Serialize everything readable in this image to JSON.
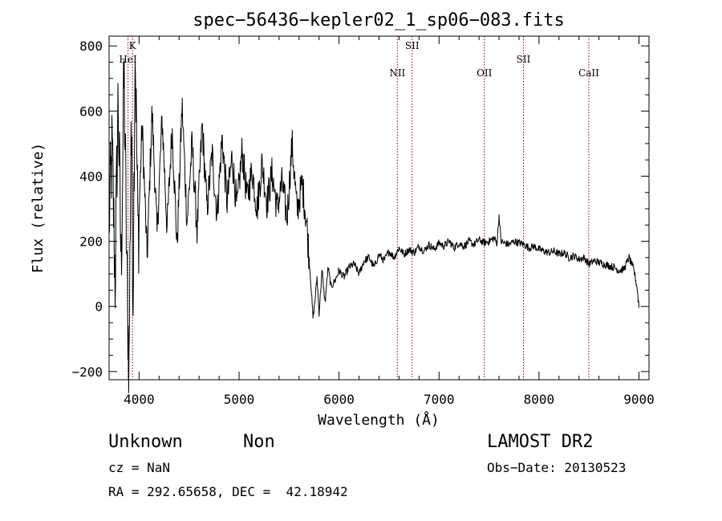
{
  "chart_data": {
    "type": "line",
    "title": "spec−56436−kepler02_1_sp06−083.fits",
    "xlabel": "Wavelength (Å)",
    "ylabel": "Flux (relative)",
    "xlim": [
      3700,
      9100
    ],
    "ylim": [
      -225,
      830
    ],
    "xticks": [
      4000,
      5000,
      6000,
      7000,
      8000,
      9000
    ],
    "xtick_labels": [
      "4000",
      "5000",
      "6000",
      "7000",
      "8000",
      "9000"
    ],
    "yticks": [
      -200,
      0,
      200,
      400,
      600,
      800
    ],
    "ytick_labels": [
      "−200",
      "0",
      "200",
      "400",
      "600",
      "800"
    ],
    "series": [
      {
        "name": "flux",
        "x": [
          3700,
          3730,
          3760,
          3790,
          3820,
          3850,
          3880,
          3900,
          3920,
          3940,
          3960,
          3990,
          4030,
          4080,
          4130,
          4180,
          4230,
          4280,
          4330,
          4380,
          4430,
          4480,
          4530,
          4580,
          4630,
          4680,
          4730,
          4780,
          4830,
          4880,
          4930,
          4980,
          5030,
          5080,
          5130,
          5180,
          5230,
          5280,
          5330,
          5380,
          5430,
          5480,
          5530,
          5580,
          5630,
          5660,
          5680,
          5700,
          5720,
          5740,
          5760,
          5780,
          5800,
          5830,
          5860,
          5890,
          5920,
          5960,
          6000,
          6050,
          6100,
          6150,
          6200,
          6250,
          6300,
          6350,
          6400,
          6450,
          6500,
          6550,
          6600,
          6650,
          6700,
          6750,
          6800,
          6850,
          6900,
          6950,
          7000,
          7050,
          7100,
          7150,
          7200,
          7250,
          7300,
          7350,
          7400,
          7450,
          7500,
          7550,
          7580,
          7600,
          7620,
          7650,
          7700,
          7750,
          7800,
          7850,
          7900,
          7950,
          8000,
          8050,
          8100,
          8150,
          8200,
          8250,
          8300,
          8350,
          8400,
          8450,
          8500,
          8550,
          8600,
          8650,
          8700,
          8750,
          8800,
          8850,
          8900,
          8950,
          8980,
          9000
        ],
        "y": [
          260,
          480,
          80,
          650,
          120,
          720,
          60,
          -185,
          600,
          50,
          820,
          200,
          560,
          150,
          600,
          220,
          580,
          240,
          550,
          180,
          620,
          260,
          500,
          230,
          560,
          300,
          470,
          280,
          520,
          320,
          460,
          300,
          480,
          330,
          420,
          300,
          440,
          320,
          410,
          300,
          380,
          270,
          500,
          290,
          380,
          300,
          240,
          150,
          60,
          -35,
          20,
          90,
          -20,
          110,
          10,
          120,
          60,
          80,
          110,
          90,
          120,
          130,
          100,
          140,
          150,
          120,
          160,
          140,
          170,
          150,
          180,
          160,
          175,
          165,
          185,
          170,
          190,
          175,
          195,
          185,
          200,
          180,
          195,
          185,
          200,
          190,
          205,
          195,
          200,
          210,
          195,
          280,
          200,
          195,
          190,
          200,
          195,
          190,
          180,
          185,
          175,
          170,
          165,
          170,
          160,
          165,
          150,
          155,
          145,
          150,
          130,
          140,
          135,
          130,
          125,
          120,
          110,
          115,
          150,
          110,
          60,
          0
        ]
      }
    ],
    "annotations": [
      {
        "label": "K",
        "x": 3934
      },
      {
        "label": "HeI",
        "x": 3889
      },
      {
        "label": "NII",
        "x": 6583
      },
      {
        "label": "SII",
        "x": 6731
      },
      {
        "label": "OII",
        "x": 7453
      },
      {
        "label": "SII",
        "x": 7844
      },
      {
        "label": "CaII",
        "x": 8498
      }
    ]
  },
  "info": {
    "object_class": "Unknown",
    "object_subclass": "Non",
    "cz": "cz = NaN",
    "ra_dec": "RA = 292.65658, DEC =  42.18942",
    "release": "LAMOST DR2",
    "obs_date": "Obs−Date: 20130523"
  }
}
